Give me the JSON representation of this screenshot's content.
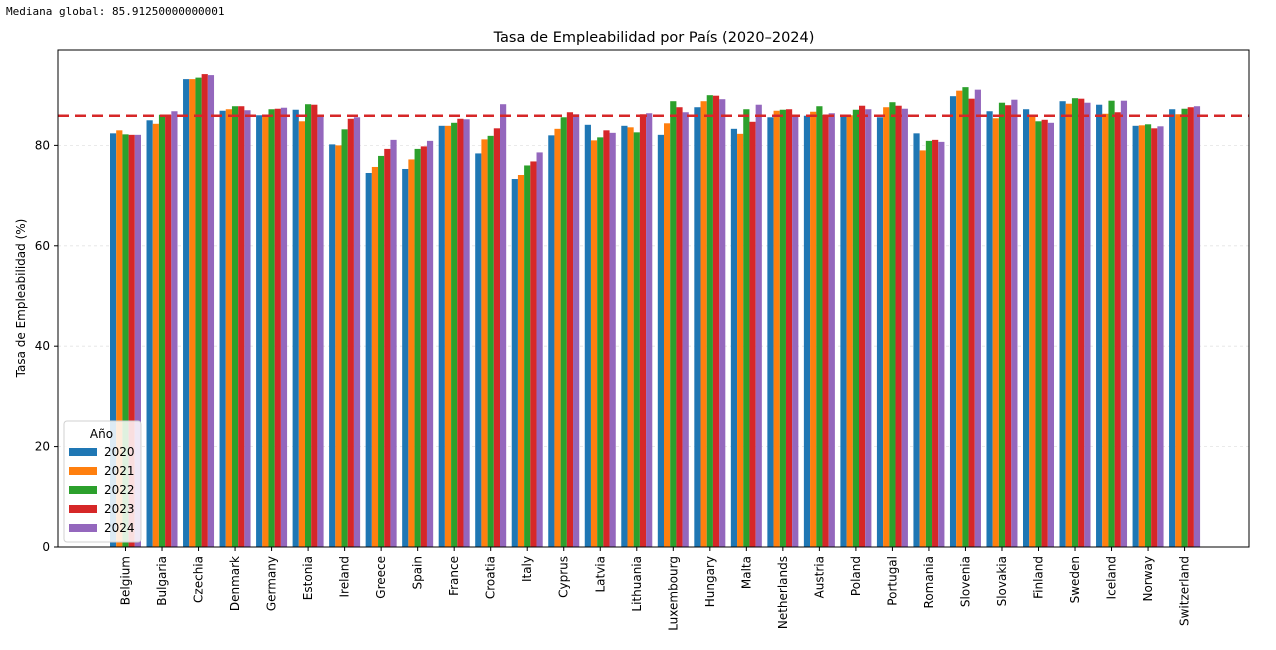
{
  "console": {
    "median_label": "Mediana global:",
    "median_value": "85.91250000000001"
  },
  "chart_data": {
    "type": "bar",
    "title": "Tasa de Empleabilidad por País (2020–2024)",
    "xlabel": "",
    "ylabel": "Tasa de Empleabilidad (%)",
    "ylim": [
      0,
      99
    ],
    "yticks": [
      0,
      20,
      40,
      60,
      80
    ],
    "grid": "horizontal dashed",
    "legend": {
      "title": "Año",
      "position": "lower-left"
    },
    "reference_line": {
      "value": 85.91250000000001,
      "style": "dashed",
      "color": "#d62728"
    },
    "categories": [
      "Belgium",
      "Bulgaria",
      "Czechia",
      "Denmark",
      "Germany",
      "Estonia",
      "Ireland",
      "Greece",
      "Spain",
      "France",
      "Croatia",
      "Italy",
      "Cyprus",
      "Latvia",
      "Lithuania",
      "Luxembourg",
      "Hungary",
      "Malta",
      "Netherlands",
      "Austria",
      "Poland",
      "Portugal",
      "Romania",
      "Slovenia",
      "Slovakia",
      "Finland",
      "Sweden",
      "Iceland",
      "Norway",
      "Switzerland"
    ],
    "series": [
      {
        "name": "2020",
        "color": "#1f77b4",
        "values": [
          82.4,
          85.0,
          93.2,
          86.9,
          86.0,
          87.1,
          80.2,
          74.5,
          75.3,
          83.9,
          78.4,
          73.3,
          82.0,
          84.1,
          83.9,
          82.1,
          87.6,
          83.3,
          85.6,
          85.9,
          86.0,
          85.6,
          82.4,
          89.8,
          86.8,
          87.2,
          88.8,
          88.1,
          83.9,
          87.2
        ]
      },
      {
        "name": "2021",
        "color": "#ff7f0e",
        "values": [
          83.0,
          84.3,
          93.2,
          87.2,
          86.0,
          84.8,
          80.0,
          75.7,
          77.2,
          83.9,
          81.2,
          74.1,
          83.3,
          81.0,
          83.6,
          84.4,
          88.8,
          82.3,
          86.9,
          86.7,
          86.0,
          87.6,
          79.0,
          90.9,
          85.4,
          86.0,
          88.3,
          86.3,
          84.0,
          86.2
        ]
      },
      {
        "name": "2022",
        "color": "#2ca02c",
        "values": [
          82.2,
          86.1,
          93.5,
          87.8,
          87.2,
          88.2,
          83.2,
          77.9,
          79.3,
          84.5,
          81.9,
          76.0,
          85.6,
          81.6,
          82.6,
          88.8,
          90.0,
          87.2,
          87.1,
          87.8,
          87.1,
          88.6,
          80.9,
          91.6,
          88.5,
          84.8,
          89.4,
          88.9,
          84.2,
          87.3
        ]
      },
      {
        "name": "2023",
        "color": "#d62728",
        "values": [
          82.1,
          86.1,
          94.2,
          87.8,
          87.3,
          88.1,
          85.3,
          79.3,
          79.8,
          85.3,
          83.4,
          76.8,
          86.6,
          83.0,
          86.2,
          87.6,
          89.9,
          84.7,
          87.2,
          86.1,
          87.9,
          87.9,
          81.1,
          89.3,
          88.0,
          85.1,
          89.3,
          86.6,
          83.4,
          87.6
        ]
      },
      {
        "name": "2024",
        "color": "#9467bd",
        "values": [
          82.1,
          86.8,
          94.0,
          87.0,
          87.5,
          85.8,
          85.6,
          81.1,
          80.9,
          85.2,
          88.2,
          78.6,
          86.2,
          82.5,
          86.4,
          86.6,
          89.2,
          88.1,
          86.1,
          86.4,
          87.2,
          87.3,
          80.7,
          91.1,
          89.1,
          84.5,
          88.5,
          88.9,
          83.8,
          87.8
        ]
      }
    ]
  }
}
